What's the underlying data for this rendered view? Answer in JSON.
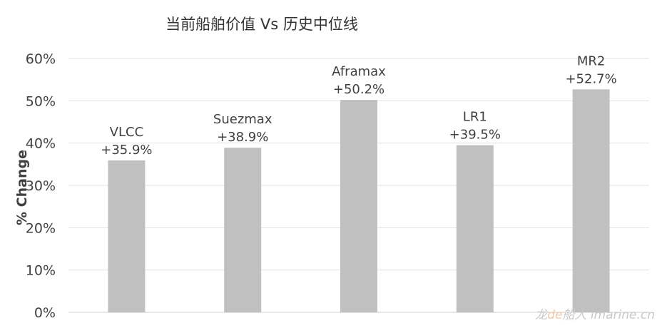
{
  "chart_data": {
    "type": "bar",
    "title": "当前船舶价值 Vs 历史中位线",
    "ylabel": "% Change",
    "xlabel": "",
    "categories": [
      "VLCC",
      "Suezmax",
      "Aframax",
      "LR1",
      "MR2"
    ],
    "values": [
      35.9,
      38.9,
      50.2,
      39.5,
      52.7
    ],
    "data_labels": [
      "+35.9%",
      "+38.9%",
      "+50.2%",
      "+39.5%",
      "+52.7%"
    ],
    "ylim": [
      0,
      60
    ],
    "yticks": [
      "0%",
      "10%",
      "20%",
      "30%",
      "40%",
      "50%",
      "60%"
    ],
    "grid": true,
    "bar_color": "#c0c0c0"
  },
  "watermark": {
    "text": "龙de船人",
    "site": "imarine.cn"
  }
}
